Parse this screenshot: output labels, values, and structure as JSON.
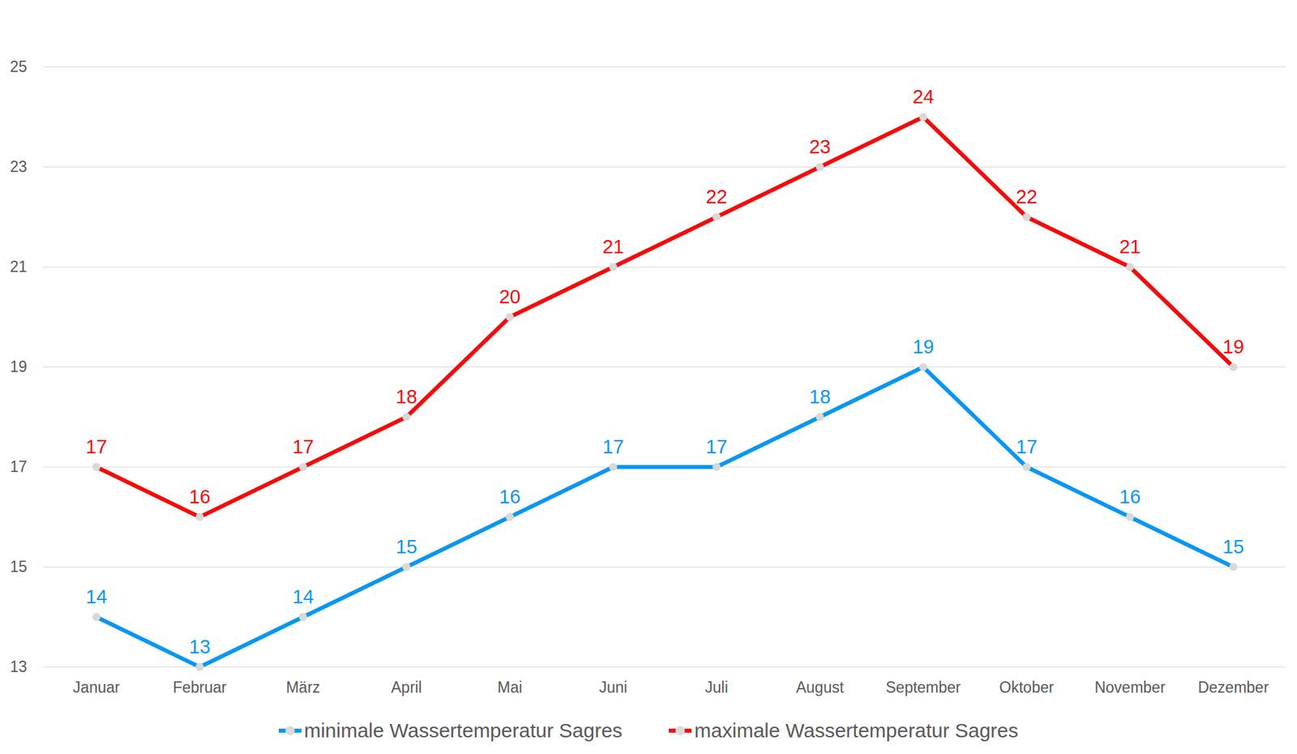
{
  "chart_data": {
    "type": "line",
    "categories": [
      "Januar",
      "Februar",
      "März",
      "April",
      "Mai",
      "Juni",
      "Juli",
      "August",
      "September",
      "Oktober",
      "November",
      "Dezember"
    ],
    "series": [
      {
        "name": "minimale Wassertemperatur Sagres",
        "color": "#0a96f0",
        "marker": "circle",
        "values": [
          14,
          13,
          14,
          15,
          16,
          17,
          17,
          18,
          19,
          17,
          16,
          15
        ]
      },
      {
        "name": "maximale Wassertemperatur Sagres",
        "color": "#f50a0a",
        "marker": "circle",
        "values": [
          17,
          16,
          17,
          18,
          20,
          21,
          22,
          23,
          24,
          22,
          21,
          19
        ]
      }
    ],
    "ylim": [
      13,
      25
    ],
    "yticks": [
      13,
      15,
      17,
      19,
      21,
      23,
      25
    ],
    "grid": true,
    "data_labels": true,
    "legend": "bottom"
  }
}
